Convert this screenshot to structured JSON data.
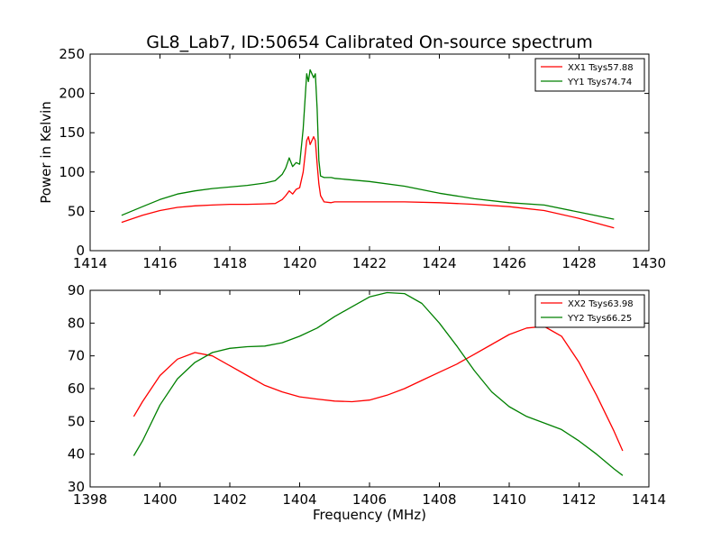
{
  "chart_data": [
    {
      "type": "line",
      "title": "GL8_Lab7, ID:50654 Calibrated On-source spectrum",
      "xlabel": "",
      "ylabel": "Power in Kelvin",
      "xlim": [
        1414,
        1430
      ],
      "ylim": [
        0,
        250
      ],
      "xticks": [
        "1414",
        "1416",
        "1418",
        "1420",
        "1422",
        "1424",
        "1426",
        "1428",
        "1430"
      ],
      "yticks": [
        "0",
        "50",
        "100",
        "150",
        "200",
        "250"
      ],
      "grid": false,
      "legend_position": "top-right",
      "series": [
        {
          "name": "XX1 Tsys57.88",
          "color": "#ff0000",
          "x": [
            1414.9,
            1415.5,
            1416.0,
            1416.5,
            1417.0,
            1417.5,
            1418.0,
            1418.5,
            1419.0,
            1419.3,
            1419.5,
            1419.6,
            1419.7,
            1419.8,
            1419.9,
            1420.0,
            1420.1,
            1420.2,
            1420.25,
            1420.3,
            1420.35,
            1420.4,
            1420.45,
            1420.5,
            1420.55,
            1420.6,
            1420.7,
            1420.9,
            1421.0,
            1422.0,
            1423.0,
            1424.0,
            1425.0,
            1426.0,
            1427.0,
            1428.0,
            1429.0
          ],
          "y": [
            36,
            45,
            51,
            55,
            57,
            58,
            59,
            59,
            59.5,
            60,
            65,
            70,
            76,
            72,
            78,
            80,
            100,
            140,
            145,
            135,
            140,
            145,
            140,
            110,
            85,
            70,
            62,
            61,
            62,
            62,
            62,
            61,
            59,
            56,
            51,
            41,
            29
          ]
        },
        {
          "name": "YY1 Tsys74.74",
          "color": "#008000",
          "x": [
            1414.9,
            1415.5,
            1416.0,
            1416.5,
            1417.0,
            1417.5,
            1418.0,
            1418.5,
            1419.0,
            1419.3,
            1419.5,
            1419.6,
            1419.7,
            1419.8,
            1419.9,
            1420.0,
            1420.1,
            1420.2,
            1420.25,
            1420.3,
            1420.35,
            1420.4,
            1420.45,
            1420.5,
            1420.55,
            1420.6,
            1420.7,
            1420.9,
            1421.0,
            1422.0,
            1423.0,
            1424.0,
            1425.0,
            1426.0,
            1427.0,
            1428.0,
            1429.0
          ],
          "y": [
            45,
            56,
            65,
            72,
            76,
            79,
            81,
            83,
            86,
            89,
            97,
            105,
            118,
            107,
            112,
            110,
            155,
            225,
            215,
            230,
            225,
            220,
            225,
            180,
            115,
            95,
            93,
            93,
            92,
            88,
            82,
            73,
            66,
            61,
            58,
            49,
            40
          ]
        }
      ]
    },
    {
      "type": "line",
      "title": "",
      "xlabel": "Frequency (MHz)",
      "ylabel": "",
      "xlim": [
        1398,
        1414
      ],
      "ylim": [
        30,
        90
      ],
      "xticks": [
        "1398",
        "1400",
        "1402",
        "1404",
        "1406",
        "1408",
        "1410",
        "1412",
        "1414"
      ],
      "yticks": [
        "30",
        "40",
        "50",
        "60",
        "70",
        "80",
        "90"
      ],
      "grid": false,
      "legend_position": "top-right",
      "series": [
        {
          "name": "XX2 Tsys63.98",
          "color": "#ff0000",
          "x": [
            1399.25,
            1399.5,
            1400.0,
            1400.5,
            1401.0,
            1401.5,
            1402.0,
            1402.5,
            1403.0,
            1403.5,
            1404.0,
            1404.5,
            1405.0,
            1405.5,
            1406.0,
            1406.5,
            1407.0,
            1407.5,
            1408.0,
            1408.5,
            1409.0,
            1409.5,
            1410.0,
            1410.5,
            1411.0,
            1411.5,
            1412.0,
            1412.5,
            1413.0,
            1413.25
          ],
          "y": [
            51.5,
            56,
            64,
            69,
            71,
            70,
            67,
            64,
            61,
            59,
            57.5,
            56.8,
            56.2,
            56,
            56.5,
            58,
            60,
            62.5,
            65,
            67.5,
            70.5,
            73.5,
            76.5,
            78.5,
            79,
            76,
            68,
            58,
            47,
            41
          ]
        },
        {
          "name": "YY2 Tsys66.25",
          "color": "#008000",
          "x": [
            1399.25,
            1399.5,
            1400.0,
            1400.5,
            1401.0,
            1401.5,
            1402.0,
            1402.5,
            1403.0,
            1403.5,
            1404.0,
            1404.5,
            1405.0,
            1405.5,
            1406.0,
            1406.5,
            1407.0,
            1407.5,
            1408.0,
            1408.5,
            1409.0,
            1409.5,
            1410.0,
            1410.5,
            1411.0,
            1411.5,
            1412.0,
            1412.5,
            1413.0,
            1413.25
          ],
          "y": [
            39.5,
            44,
            55,
            63,
            68,
            71,
            72.3,
            72.8,
            73,
            74,
            76,
            78.5,
            82,
            85,
            88,
            89.3,
            89,
            86,
            80,
            73,
            65.5,
            59,
            54.5,
            51.5,
            49.5,
            47.5,
            44,
            40,
            35.5,
            33.5
          ]
        }
      ]
    }
  ]
}
